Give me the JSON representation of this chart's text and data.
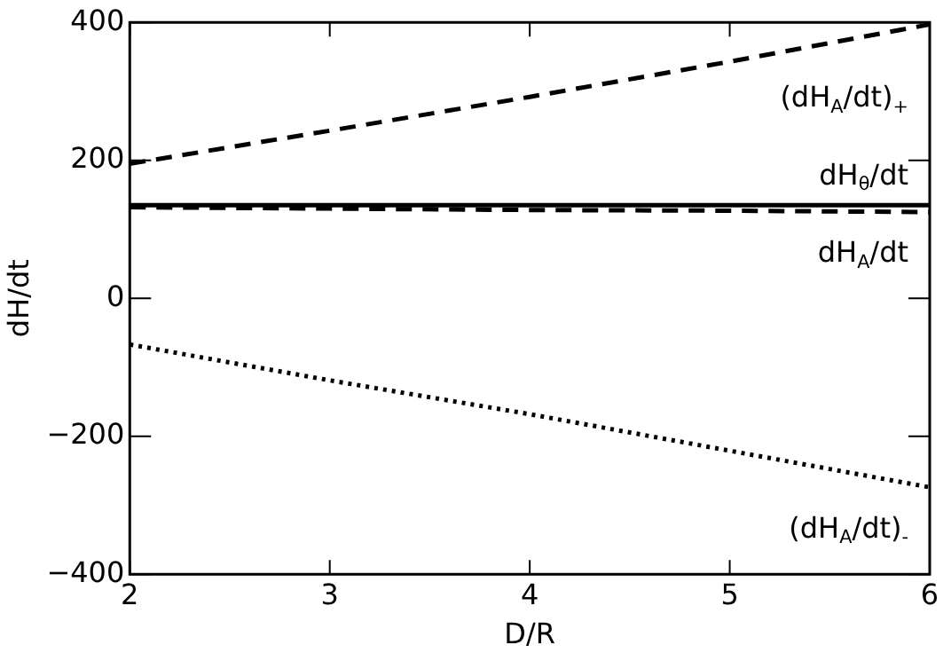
{
  "chart_data": {
    "type": "line",
    "xlabel": "D/R",
    "ylabel": "dH/dt",
    "x": [
      2,
      3,
      4,
      5,
      6
    ],
    "xlim": [
      2,
      6
    ],
    "xticks": [
      2,
      3,
      4,
      5,
      6
    ],
    "ylim": [
      -400,
      400
    ],
    "yticks": [
      -400,
      -200,
      0,
      200,
      400
    ],
    "grid": false,
    "legend": "right",
    "marker": "none",
    "series": [
      {
        "name": "(dH$_{A}$/dt)$_{+}$",
        "color": "#000000",
        "line_style": "dashed",
        "values": [
          195,
          243,
          292,
          343,
          397
        ]
      },
      {
        "name": "dH$_{θ}$/dt",
        "color": "#000000",
        "line_style": "solid",
        "values": [
          135,
          135,
          135,
          135,
          135
        ]
      },
      {
        "name": "dH$_{A}$/dt",
        "color": "#000000",
        "line_style": "dashed",
        "values": [
          132,
          130,
          128,
          127,
          125
        ]
      },
      {
        "name": "(dH$_{A}$/dt)$_{-}$",
        "color": "#000000",
        "line_style": "dotted",
        "values": [
          -67,
          -119,
          -168,
          -221,
          -274
        ]
      }
    ]
  }
}
